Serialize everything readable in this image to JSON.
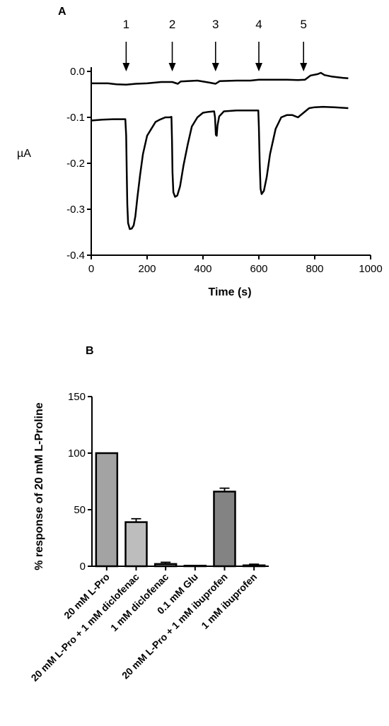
{
  "chart_data": [
    {
      "panel": "A",
      "type": "line",
      "xlabel": "Time (s)",
      "ylabel": "µA",
      "xlim": [
        0,
        1000
      ],
      "ylim": [
        -0.4,
        0.0
      ],
      "xticks": [
        0,
        200,
        400,
        600,
        800,
        1000
      ],
      "yticks": [
        0.0,
        -0.1,
        -0.2,
        -0.3,
        -0.4
      ],
      "xtick_labels": [
        "0",
        "200",
        "400",
        "600",
        "800",
        "1000"
      ],
      "ytick_labels": [
        "0.0",
        "-0.1",
        "-0.2",
        "-0.3",
        "-0.4"
      ],
      "grid": false,
      "annotations": [
        {
          "label": "1",
          "x": 125
        },
        {
          "label": "2",
          "x": 290
        },
        {
          "label": "3",
          "x": 445
        },
        {
          "label": "4",
          "x": 600
        },
        {
          "label": "5",
          "x": 760
        }
      ],
      "series": [
        {
          "points": [
            [
              0,
              -0.026
            ],
            [
              60,
              -0.026
            ],
            [
              90,
              -0.028
            ],
            [
              125,
              -0.029
            ],
            [
              160,
              -0.027
            ],
            [
              200,
              -0.026
            ],
            [
              250,
              -0.023
            ],
            [
              290,
              -0.023
            ],
            [
              310,
              -0.027
            ],
            [
              320,
              -0.022
            ],
            [
              380,
              -0.02
            ],
            [
              420,
              -0.024
            ],
            [
              445,
              -0.027
            ],
            [
              460,
              -0.021
            ],
            [
              520,
              -0.02
            ],
            [
              570,
              -0.02
            ],
            [
              600,
              -0.018
            ],
            [
              650,
              -0.018
            ],
            [
              700,
              -0.018
            ],
            [
              740,
              -0.019
            ],
            [
              765,
              -0.018
            ],
            [
              785,
              -0.009
            ],
            [
              810,
              -0.006
            ],
            [
              822,
              -0.003
            ],
            [
              835,
              -0.008
            ],
            [
              860,
              -0.011
            ],
            [
              900,
              -0.014
            ],
            [
              920,
              -0.015
            ]
          ]
        },
        {
          "points": [
            [
              0,
              -0.107
            ],
            [
              40,
              -0.105
            ],
            [
              80,
              -0.104
            ],
            [
              115,
              -0.104
            ],
            [
              122,
              -0.104
            ],
            [
              125,
              -0.14
            ],
            [
              127,
              -0.22
            ],
            [
              129,
              -0.29
            ],
            [
              132,
              -0.33
            ],
            [
              138,
              -0.343
            ],
            [
              145,
              -0.342
            ],
            [
              152,
              -0.335
            ],
            [
              158,
              -0.315
            ],
            [
              165,
              -0.275
            ],
            [
              175,
              -0.225
            ],
            [
              185,
              -0.18
            ],
            [
              200,
              -0.14
            ],
            [
              215,
              -0.125
            ],
            [
              230,
              -0.11
            ],
            [
              245,
              -0.105
            ],
            [
              265,
              -0.1
            ],
            [
              280,
              -0.1
            ],
            [
              287,
              -0.099
            ],
            [
              289,
              -0.15
            ],
            [
              291,
              -0.22
            ],
            [
              294,
              -0.263
            ],
            [
              300,
              -0.273
            ],
            [
              308,
              -0.27
            ],
            [
              318,
              -0.25
            ],
            [
              330,
              -0.205
            ],
            [
              345,
              -0.16
            ],
            [
              360,
              -0.12
            ],
            [
              380,
              -0.1
            ],
            [
              400,
              -0.09
            ],
            [
              420,
              -0.088
            ],
            [
              440,
              -0.087
            ],
            [
              443,
              -0.1
            ],
            [
              446,
              -0.138
            ],
            [
              449,
              -0.14
            ],
            [
              452,
              -0.118
            ],
            [
              458,
              -0.098
            ],
            [
              475,
              -0.087
            ],
            [
              520,
              -0.085
            ],
            [
              560,
              -0.085
            ],
            [
              595,
              -0.085
            ],
            [
              598,
              -0.085
            ],
            [
              600,
              -0.12
            ],
            [
              603,
              -0.2
            ],
            [
              606,
              -0.255
            ],
            [
              610,
              -0.267
            ],
            [
              618,
              -0.26
            ],
            [
              628,
              -0.23
            ],
            [
              640,
              -0.18
            ],
            [
              660,
              -0.125
            ],
            [
              680,
              -0.1
            ],
            [
              700,
              -0.095
            ],
            [
              720,
              -0.095
            ],
            [
              740,
              -0.1
            ],
            [
              760,
              -0.09
            ],
            [
              780,
              -0.08
            ],
            [
              800,
              -0.078
            ],
            [
              830,
              -0.077
            ],
            [
              870,
              -0.078
            ],
            [
              920,
              -0.08
            ]
          ]
        }
      ]
    },
    {
      "panel": "B",
      "type": "bar",
      "ylabel": "% response of 20 mM L-Proline",
      "ylim": [
        0,
        150
      ],
      "yticks": [
        0,
        50,
        100,
        150
      ],
      "ytick_labels": [
        "0",
        "50",
        "100",
        "150"
      ],
      "grid": false,
      "categories": [
        "20 mM L-Pro",
        "20 mM L-Pro + 1 mM diclofenac",
        "1 mM diclofenac",
        "0.1 mM Glu",
        "20 mM L-Pro + 1 mM ibuprofen",
        "1 mM ibuprofen"
      ],
      "values": [
        100,
        39,
        2,
        0.2,
        66,
        0.8
      ],
      "errors": [
        0,
        3,
        1.5,
        0,
        3,
        1
      ],
      "colors": [
        "#a3a3a3",
        "#bdbdbd",
        "#8f8f8f",
        "#cfcfcf",
        "#838383",
        "#d0d0d0"
      ]
    }
  ],
  "panel_a_label": "A",
  "panel_b_label": "B"
}
